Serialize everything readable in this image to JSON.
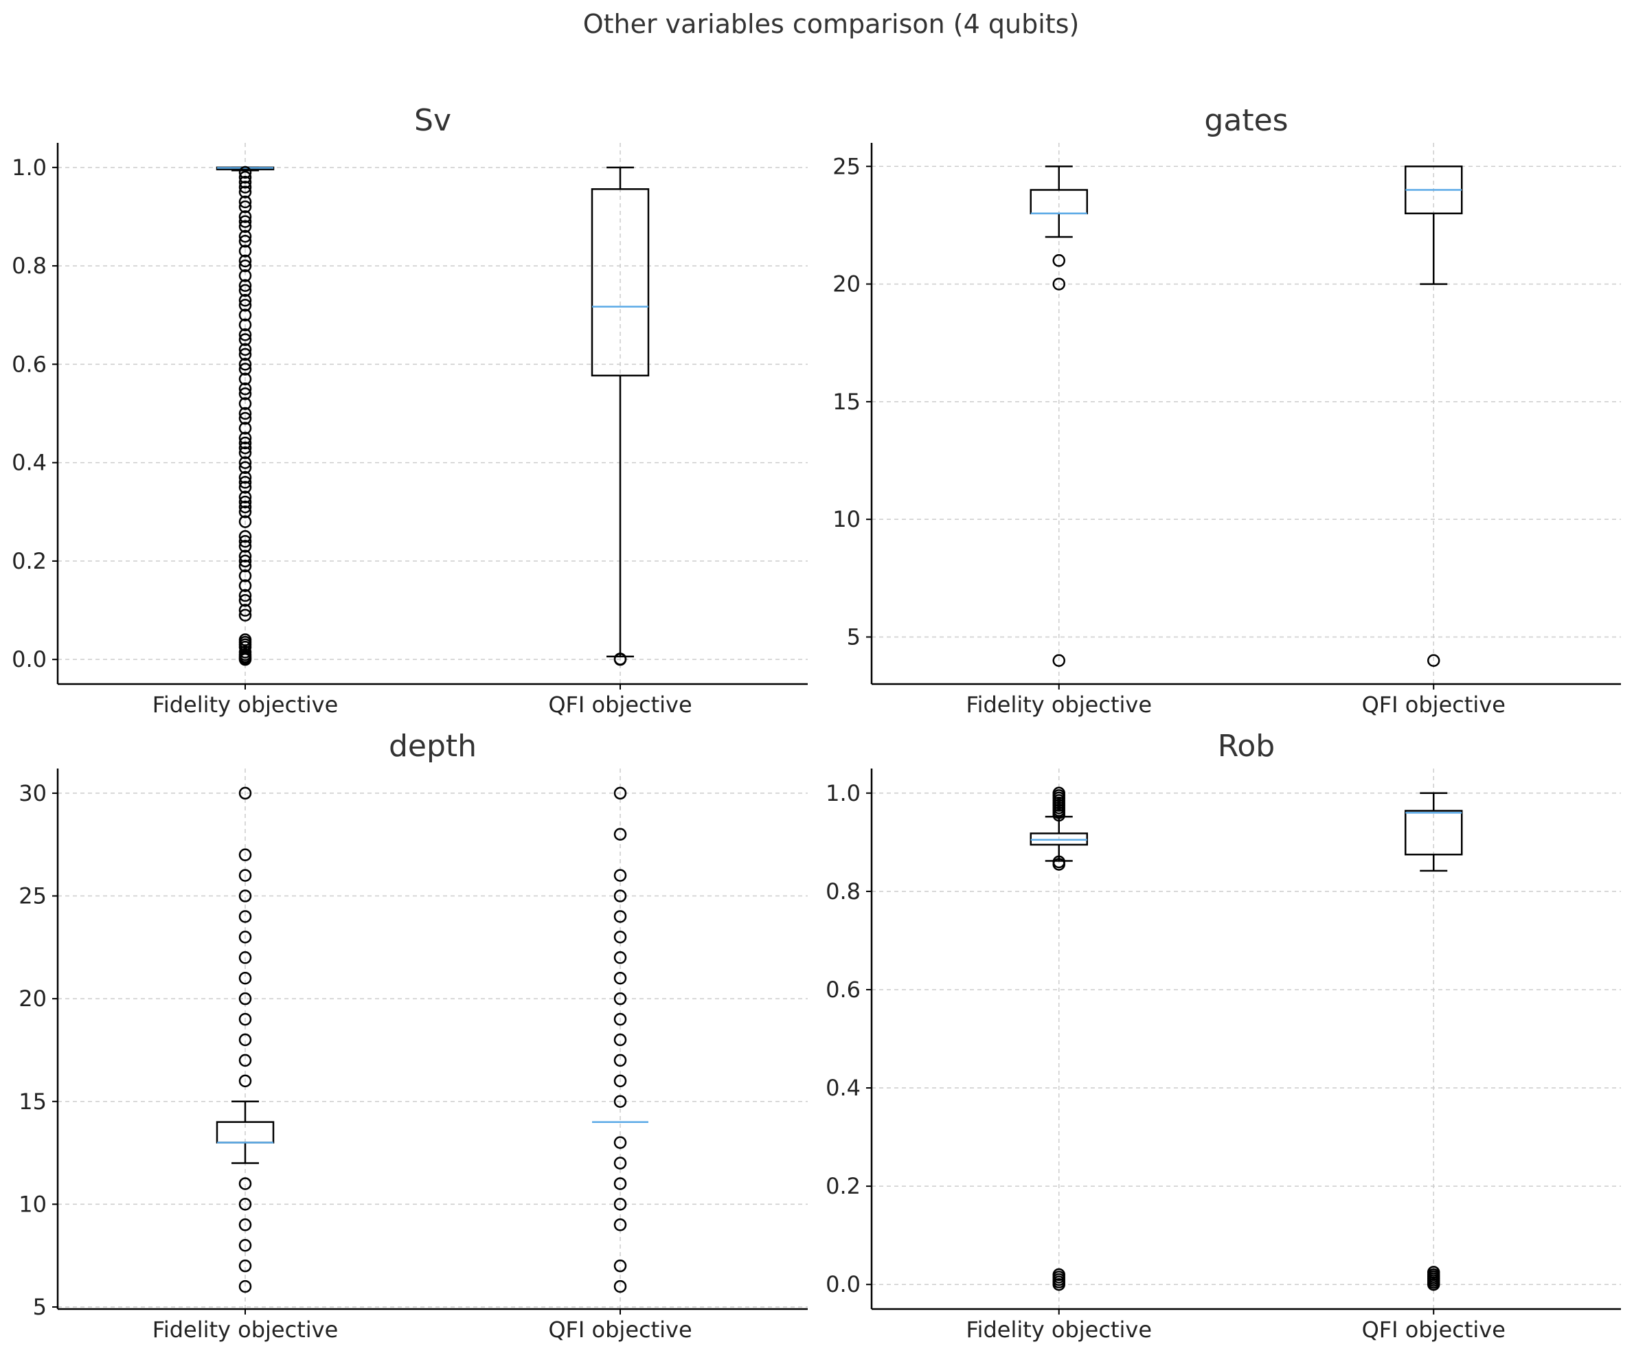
{
  "chart_data": {
    "title": "Other variables comparison (4 qubits)",
    "categories": [
      "Fidelity objective",
      "QFI objective"
    ],
    "colors": {
      "median": "#5aa9e6",
      "box": "#000000",
      "grid": "#cccccc"
    },
    "plots": [
      {
        "type": "box",
        "title": "Sv",
        "ylim": [
          -0.05,
          1.05
        ],
        "yticks": [
          0.0,
          0.2,
          0.4,
          0.6,
          0.8,
          1.0
        ],
        "ytick_labels": [
          "0.0",
          "0.2",
          "0.4",
          "0.6",
          "0.8",
          "1.0"
        ],
        "boxes": [
          {
            "label": "Fidelity objective",
            "q1": 0.996,
            "median": 0.999,
            "q3": 1.0,
            "whisker_low": 0.994,
            "whisker_high": 1.0,
            "fliers": [
              0.0,
              0.003,
              0.006,
              0.01,
              0.015,
              0.025,
              0.03,
              0.035,
              0.04,
              0.09,
              0.1,
              0.12,
              0.13,
              0.15,
              0.17,
              0.19,
              0.2,
              0.21,
              0.23,
              0.24,
              0.25,
              0.28,
              0.3,
              0.31,
              0.32,
              0.33,
              0.35,
              0.36,
              0.37,
              0.39,
              0.4,
              0.42,
              0.43,
              0.44,
              0.45,
              0.47,
              0.49,
              0.5,
              0.52,
              0.54,
              0.55,
              0.57,
              0.59,
              0.6,
              0.62,
              0.63,
              0.65,
              0.66,
              0.68,
              0.7,
              0.72,
              0.73,
              0.75,
              0.76,
              0.78,
              0.8,
              0.81,
              0.83,
              0.85,
              0.86,
              0.88,
              0.89,
              0.9,
              0.92,
              0.93,
              0.95,
              0.96,
              0.97,
              0.98,
              0.99
            ]
          },
          {
            "label": "QFI objective",
            "q1": 0.577,
            "median": 0.717,
            "q3": 0.956,
            "whisker_low": 0.006,
            "whisker_high": 1.0,
            "fliers": [
              0.0,
              0.001
            ]
          }
        ]
      },
      {
        "type": "box",
        "title": "gates",
        "ylim": [
          3.0,
          26.0
        ],
        "yticks": [
          5,
          10,
          15,
          20,
          25
        ],
        "ytick_labels": [
          "5",
          "10",
          "15",
          "20",
          "25"
        ],
        "boxes": [
          {
            "label": "Fidelity objective",
            "q1": 23,
            "median": 23,
            "q3": 24,
            "whisker_low": 22,
            "whisker_high": 25,
            "fliers": [
              4,
              20,
              21
            ]
          },
          {
            "label": "QFI objective",
            "q1": 23,
            "median": 24,
            "q3": 25,
            "whisker_low": 20,
            "whisker_high": 25,
            "fliers": [
              4
            ]
          }
        ]
      },
      {
        "type": "box",
        "title": "depth",
        "ylim": [
          4.9,
          31.2
        ],
        "yticks": [
          5,
          10,
          15,
          20,
          25,
          30
        ],
        "ytick_labels": [
          "5",
          "10",
          "15",
          "20",
          "25",
          "30"
        ],
        "boxes": [
          {
            "label": "Fidelity objective",
            "q1": 13,
            "median": 13,
            "q3": 14,
            "whisker_low": 12,
            "whisker_high": 15,
            "fliers": [
              6,
              7,
              8,
              9,
              10,
              11,
              16,
              17,
              18,
              19,
              20,
              21,
              22,
              23,
              24,
              25,
              26,
              27,
              30
            ]
          },
          {
            "label": "QFI objective",
            "q1": 14,
            "median": 14,
            "q3": 14,
            "whisker_low": 14,
            "whisker_high": 14,
            "fliers": [
              6,
              7,
              9,
              10,
              11,
              12,
              13,
              15,
              16,
              17,
              18,
              19,
              20,
              21,
              22,
              23,
              24,
              25,
              26,
              28,
              30
            ]
          }
        ]
      },
      {
        "type": "box",
        "title": "Rob",
        "ylim": [
          -0.05,
          1.05
        ],
        "yticks": [
          0.0,
          0.2,
          0.4,
          0.6,
          0.8,
          1.0
        ],
        "ytick_labels": [
          "0.0",
          "0.2",
          "0.4",
          "0.6",
          "0.8",
          "1.0"
        ],
        "boxes": [
          {
            "label": "Fidelity objective",
            "q1": 0.895,
            "median": 0.905,
            "q3": 0.918,
            "whisker_low": 0.862,
            "whisker_high": 0.952,
            "fliers": [
              0.0,
              0.005,
              0.01,
              0.015,
              0.02,
              0.855,
              0.86,
              0.955,
              0.96,
              0.965,
              0.97,
              0.975,
              0.98,
              0.985,
              0.99,
              0.995,
              1.0
            ]
          },
          {
            "label": "QFI objective",
            "q1": 0.875,
            "median": 0.96,
            "q3": 0.964,
            "whisker_low": 0.842,
            "whisker_high": 1.0,
            "fliers": [
              0.0,
              0.004,
              0.008,
              0.012,
              0.016,
              0.02,
              0.025
            ]
          }
        ]
      }
    ]
  }
}
